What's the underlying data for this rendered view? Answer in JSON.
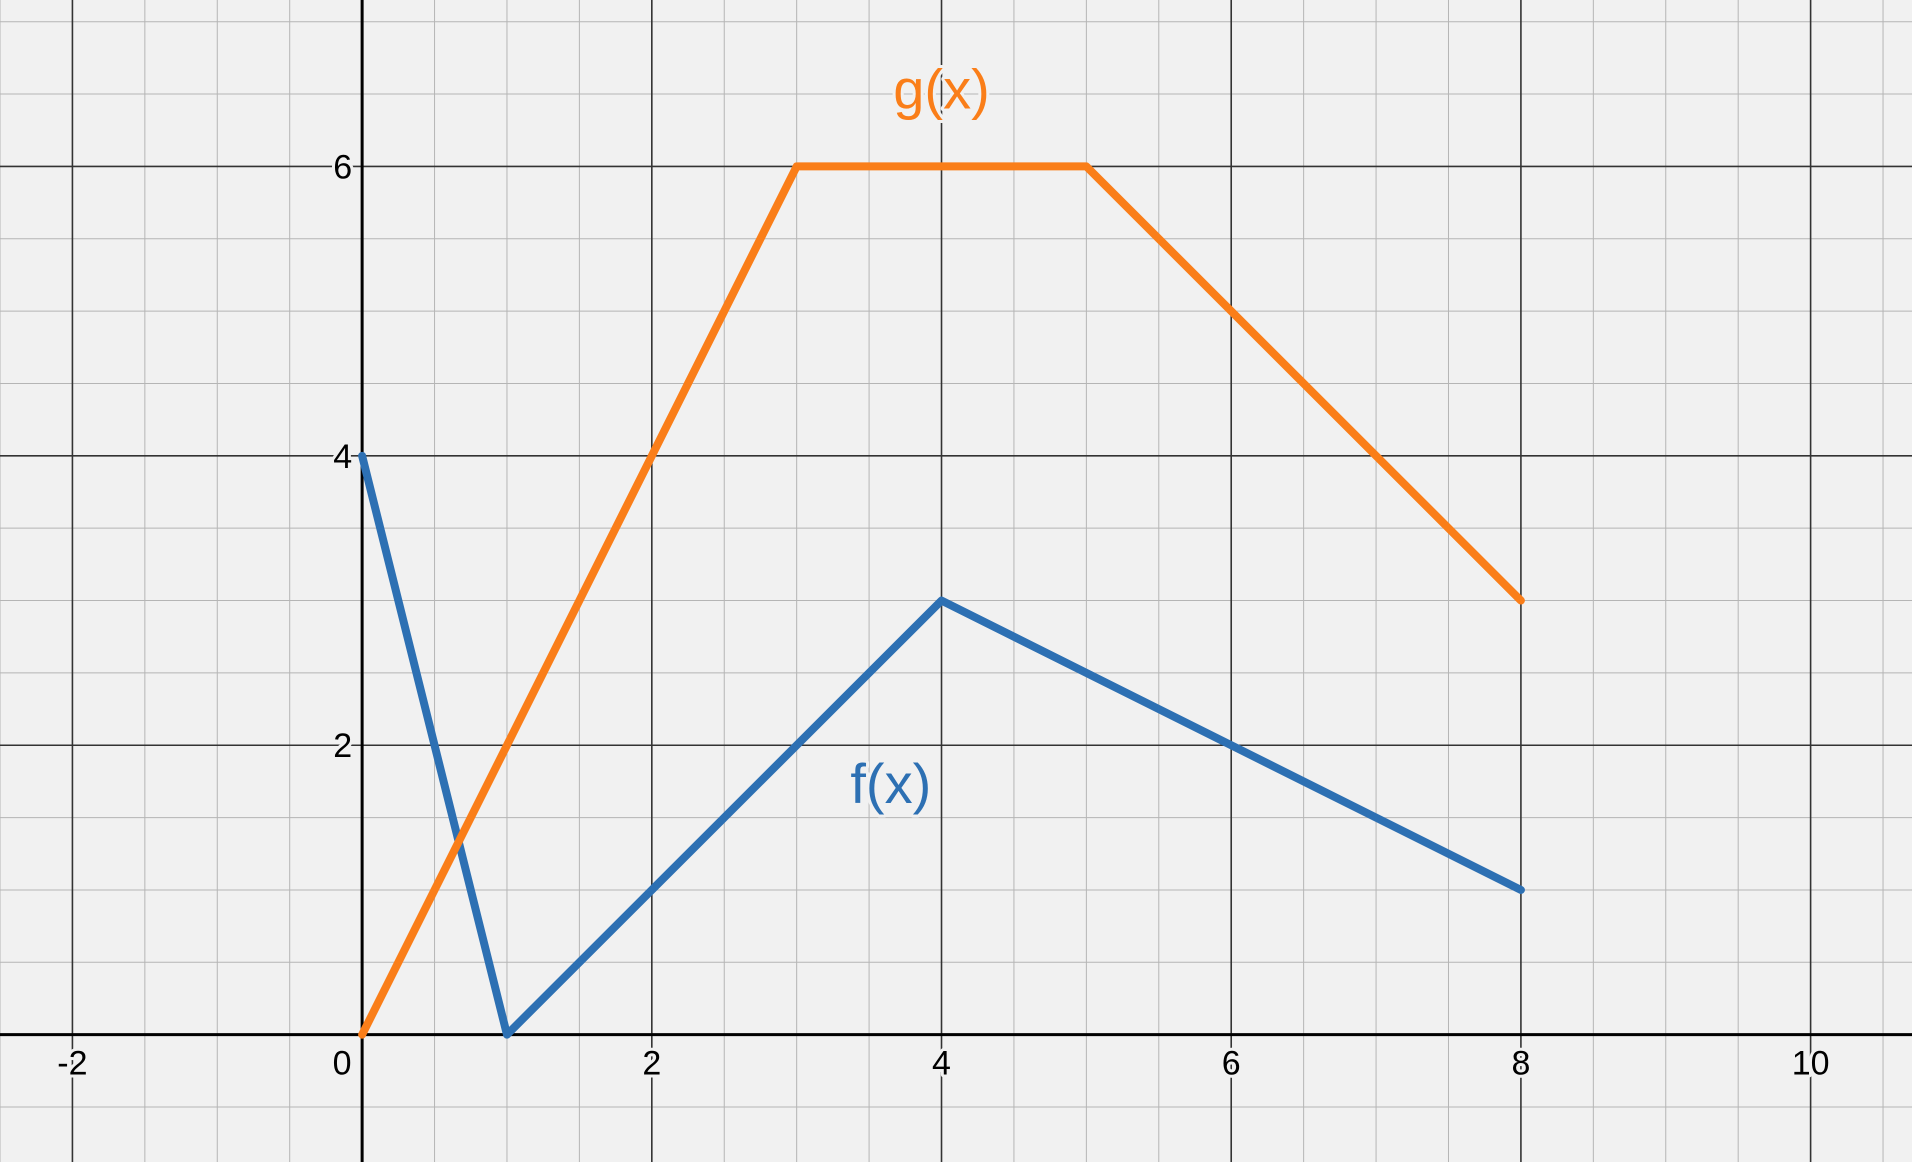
{
  "chart_data": {
    "type": "line",
    "title": "",
    "xlabel": "",
    "ylabel": "",
    "xlim": [
      -2.5,
      10.7
    ],
    "ylim": [
      -0.88,
      7.15
    ],
    "grid": true,
    "major_step": 2,
    "minor_step": 0.5,
    "x_ticks": [
      {
        "value": -2,
        "label": "-2"
      },
      {
        "value": 2,
        "label": "2"
      },
      {
        "value": 4,
        "label": "4"
      },
      {
        "value": 6,
        "label": "6"
      },
      {
        "value": 8,
        "label": "8"
      },
      {
        "value": 10,
        "label": "10"
      }
    ],
    "origin_label": "0",
    "y_ticks": [
      {
        "value": 2,
        "label": "2"
      },
      {
        "value": 4,
        "label": "4"
      },
      {
        "value": 6,
        "label": "6"
      }
    ],
    "series": [
      {
        "name": "f(x)",
        "color": "#2d70b3",
        "label_at": {
          "x": 3.65,
          "y": 1.6
        },
        "points": [
          [
            0,
            4
          ],
          [
            1,
            0
          ],
          [
            4,
            3
          ],
          [
            8,
            1
          ]
        ]
      },
      {
        "name": "g(x)",
        "color": "#fa7e19",
        "label_at": {
          "x": 4.0,
          "y": 6.4
        },
        "points": [
          [
            0,
            0
          ],
          [
            3,
            6
          ],
          [
            5,
            6
          ],
          [
            8,
            3
          ]
        ]
      }
    ],
    "colors": {
      "background": "#f1f1f1",
      "minor_grid": "#b5b5b5",
      "major_grid": "#333333",
      "axis": "#000000"
    }
  }
}
